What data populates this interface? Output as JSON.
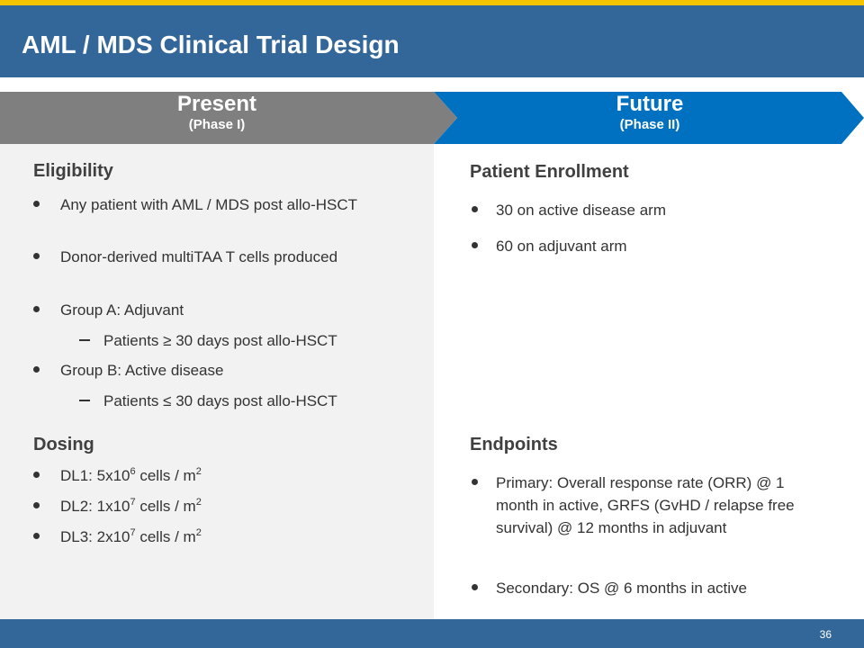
{
  "header": {
    "title": "AML / MDS Clinical Trial Design"
  },
  "columns": [
    {
      "title": "Present",
      "subtitle": "(Phase I)"
    },
    {
      "title": "Future",
      "subtitle": "(Phase II)"
    }
  ],
  "eligibility": {
    "heading": "Eligibility",
    "items": [
      {
        "text": "Any patient with AML / MDS post allo-HSCT"
      },
      {
        "text": "Donor-derived multiTAA T cells produced"
      },
      {
        "text": "Group A: Adjuvant",
        "sub": "Patients ≥ 30 days post allo-HSCT"
      },
      {
        "text": "Group B: Active disease",
        "sub": "Patients ≤ 30 days post allo-HSCT"
      }
    ]
  },
  "dosing": {
    "heading": "Dosing",
    "items": [
      {
        "text": "DL1: 5x10",
        "exp": "6",
        "unit": " cells / m",
        "unit_exp": "2"
      },
      {
        "text": "DL2: 1x10",
        "exp": "7",
        "unit": " cells / m",
        "unit_exp": "2"
      },
      {
        "text": "DL3: 2x10",
        "exp": "7",
        "unit": " cells / m",
        "unit_exp": "2"
      }
    ]
  },
  "enrollment": {
    "heading": "Patient Enrollment",
    "items": [
      "30 on active disease arm",
      "60 on adjuvant arm"
    ]
  },
  "endpoints": {
    "heading": "Endpoints",
    "items": [
      "Primary: Overall response rate (ORR) @ 1 month in active, GRFS (GvHD / relapse free survival) @ 12 months in adjuvant",
      "Secondary: OS @ 6 months in active"
    ]
  },
  "footer": {
    "page_number": "36"
  }
}
